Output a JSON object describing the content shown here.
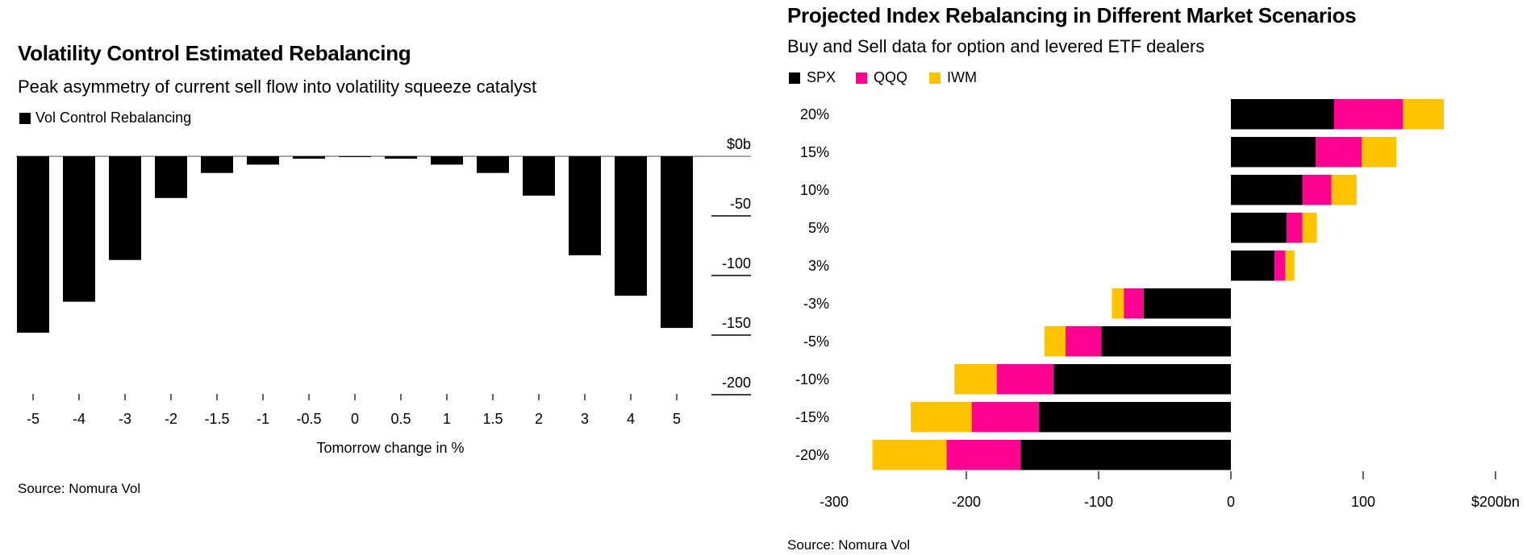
{
  "chart_data": [
    {
      "type": "bar",
      "title": "Volatility Control Estimated Rebalancing",
      "subtitle": "Peak asymmetry of current sell flow into volatility squeeze catalyst",
      "legend": [
        {
          "name": "Vol Control Rebalancing",
          "color": "#000000"
        }
      ],
      "legend_position": "top-left",
      "categories": [
        "-5",
        "-4",
        "-3",
        "-2",
        "-1.5",
        "-1",
        "-0.5",
        "0",
        "0.5",
        "1",
        "1.5",
        "2",
        "3",
        "4",
        "5"
      ],
      "series": [
        {
          "name": "Vol Control Rebalancing",
          "color": "#000000",
          "values": [
            -148,
            -122,
            -87,
            -35,
            -14,
            -7,
            -2,
            -0.5,
            -2,
            -7,
            -14,
            -33,
            -83,
            -117,
            -144
          ]
        }
      ],
      "xlabel": "Tomorrow change in %",
      "ylabel": "",
      "ylim": [
        -200,
        0
      ],
      "yticks": [
        0,
        -50,
        -100,
        -150,
        -200
      ],
      "ytick_labels": [
        "$0b",
        "-50",
        "-100",
        "-150",
        "-200"
      ],
      "y_axis_side": "right",
      "grid": false,
      "source": "Source: Nomura Vol"
    },
    {
      "type": "bar",
      "orientation": "horizontal",
      "stacked": true,
      "title": "Projected Index Rebalancing in Different Market Scenarios",
      "subtitle": "Buy and Sell data for option and levered ETF dealers",
      "legend": [
        {
          "name": "SPX",
          "color": "#000000"
        },
        {
          "name": "QQQ",
          "color": "#FF0090"
        },
        {
          "name": "IWM",
          "color": "#FFC400"
        }
      ],
      "legend_position": "top-left",
      "categories": [
        "20%",
        "15%",
        "10%",
        "5%",
        "3%",
        "-3%",
        "-5%",
        "-10%",
        "-15%",
        "-20%"
      ],
      "series": [
        {
          "name": "SPX",
          "color": "#000000",
          "values": [
            78,
            64,
            54,
            42,
            33,
            -66,
            -98,
            -134,
            -145,
            -159
          ]
        },
        {
          "name": "QQQ",
          "color": "#FF0090",
          "values": [
            52,
            35,
            22,
            12,
            8,
            -15,
            -27,
            -43,
            -51,
            -56
          ]
        },
        {
          "name": "IWM",
          "color": "#FFC400",
          "values": [
            31,
            26,
            19,
            11,
            7,
            -9,
            -16,
            -32,
            -46,
            -56
          ]
        }
      ],
      "xlabel": "",
      "ylabel": "",
      "xlim": [
        -300,
        200
      ],
      "xticks": [
        -300,
        -200,
        -100,
        0,
        100,
        200
      ],
      "xtick_labels": [
        "-300",
        "-200",
        "-100",
        "0",
        "100",
        "$200bn"
      ],
      "grid": false,
      "source": "Source: Nomura Vol"
    }
  ]
}
